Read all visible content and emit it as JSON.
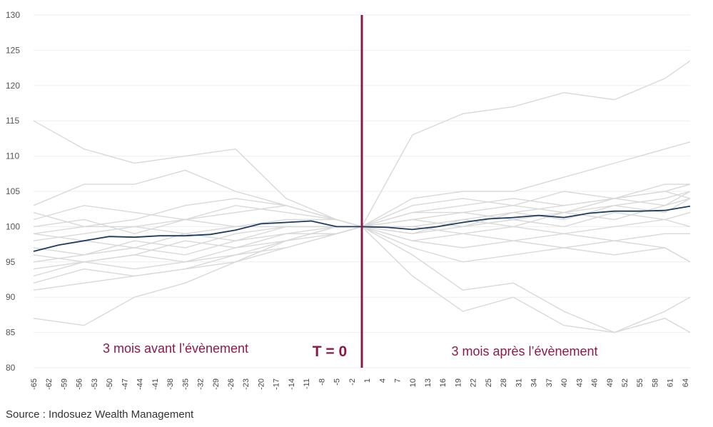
{
  "chart_data": {
    "type": "line",
    "ylim": [
      80,
      130
    ],
    "y_ticks": [
      80,
      85,
      90,
      95,
      100,
      105,
      110,
      115,
      120,
      125,
      130
    ],
    "x_range": [
      -65,
      65
    ],
    "x_tick_labels": [
      "-65",
      "-62",
      "-59",
      "-56",
      "-53",
      "-50",
      "-47",
      "-44",
      "-41",
      "-38",
      "-35",
      "-32",
      "-29",
      "-26",
      "-23",
      "-20",
      "-17",
      "-14",
      "-11",
      "-8",
      "-5",
      "-2",
      "1",
      "4",
      "7",
      "10",
      "13",
      "16",
      "19",
      "22",
      "25",
      "28",
      "31",
      "34",
      "37",
      "40",
      "43",
      "46",
      "49",
      "52",
      "55",
      "58",
      "61",
      "64"
    ],
    "grid": "horizontal",
    "event_marker": {
      "x": 0,
      "label": "T = 0"
    },
    "annotations": {
      "before": "3 mois avant l’évènement",
      "after": "3 mois après l’évènement"
    },
    "average_series": {
      "x": [
        -65,
        -60,
        -55,
        -50,
        -45,
        -40,
        -35,
        -30,
        -25,
        -20,
        -15,
        -10,
        -5,
        0,
        5,
        10,
        15,
        20,
        25,
        30,
        35,
        40,
        45,
        50,
        55,
        60,
        65
      ],
      "values": [
        96.5,
        97.4,
        98.0,
        98.6,
        98.5,
        98.7,
        98.7,
        98.9,
        99.5,
        100.4,
        100.6,
        100.8,
        100.0,
        100.0,
        99.9,
        99.6,
        100.0,
        100.6,
        101.1,
        101.3,
        101.6,
        101.3,
        101.9,
        102.2,
        102.2,
        102.3,
        102.9
      ]
    },
    "background_series": [
      {
        "x": [
          -65,
          -55,
          -45,
          -35,
          -25,
          -15,
          -5,
          0,
          10,
          20,
          30,
          40,
          50,
          60,
          65
        ],
        "values": [
          115,
          111,
          109,
          110,
          111,
          104,
          101,
          100,
          113,
          116,
          117,
          119,
          118,
          121,
          123.5
        ]
      },
      {
        "x": [
          -65,
          -55,
          -45,
          -35,
          -25,
          -15,
          -5,
          0,
          10,
          20,
          30,
          40,
          50,
          60,
          65
        ],
        "values": [
          103,
          106,
          106,
          108,
          105,
          103,
          101,
          100,
          104,
          105,
          105,
          107,
          109,
          111,
          112
        ]
      },
      {
        "x": [
          -65,
          -55,
          -45,
          -35,
          -25,
          -15,
          -5,
          0,
          10,
          20,
          30,
          40,
          50,
          60,
          65
        ],
        "values": [
          87,
          86,
          90,
          92,
          95,
          98,
          100,
          100,
          93,
          88,
          90,
          86,
          85,
          87,
          85
        ]
      },
      {
        "x": [
          -65,
          -55,
          -45,
          -35,
          -25,
          -15,
          -5,
          0,
          10,
          20,
          30,
          40,
          50,
          60,
          65
        ],
        "values": [
          92,
          94,
          93,
          94,
          96,
          97,
          99,
          100,
          96,
          91,
          92,
          88,
          85,
          88,
          90
        ]
      },
      {
        "x": [
          -65,
          -55,
          -45,
          -35,
          -25,
          -15,
          -5,
          0,
          10,
          20,
          30,
          40,
          50,
          60,
          65
        ],
        "values": [
          95,
          96,
          97,
          96,
          98,
          99,
          100,
          100,
          100,
          101,
          100,
          99,
          98,
          97,
          95
        ]
      },
      {
        "x": [
          -65,
          -55,
          -45,
          -35,
          -25,
          -15,
          -5,
          0,
          10,
          20,
          30,
          40,
          50,
          60,
          65
        ],
        "values": [
          98,
          99,
          100,
          99,
          100,
          101,
          101,
          100,
          102,
          103,
          104,
          103,
          104,
          105,
          106
        ]
      },
      {
        "x": [
          -65,
          -55,
          -45,
          -35,
          -25,
          -15,
          -5,
          0,
          10,
          20,
          30,
          40,
          50,
          60,
          65
        ],
        "values": [
          100,
          101,
          99,
          101,
          102,
          103,
          101,
          100,
          101,
          100,
          102,
          101,
          103,
          104,
          105
        ]
      },
      {
        "x": [
          -65,
          -55,
          -45,
          -35,
          -25,
          -15,
          -5,
          0,
          10,
          20,
          30,
          40,
          50,
          60,
          65
        ],
        "values": [
          94,
          95,
          96,
          98,
          97,
          99,
          99,
          100,
          98,
          99,
          100,
          102,
          101,
          103,
          104
        ]
      },
      {
        "x": [
          -65,
          -55,
          -45,
          -35,
          -25,
          -15,
          -5,
          0,
          10,
          20,
          30,
          40,
          50,
          60,
          65
        ],
        "values": [
          97,
          96,
          98,
          97,
          99,
          100,
          100,
          100,
          99,
          101,
          102,
          103,
          104,
          103,
          105
        ]
      },
      {
        "x": [
          -65,
          -55,
          -45,
          -35,
          -25,
          -15,
          -5,
          0,
          10,
          20,
          30,
          40,
          50,
          60,
          65
        ],
        "values": [
          99,
          98,
          97,
          99,
          98,
          100,
          100,
          100,
          103,
          104,
          103,
          105,
          104,
          106,
          106
        ]
      },
      {
        "x": [
          -65,
          -55,
          -45,
          -35,
          -25,
          -15,
          -5,
          0,
          10,
          20,
          30,
          40,
          50,
          60,
          65
        ],
        "values": [
          102,
          100,
          101,
          103,
          104,
          103,
          101,
          100,
          102,
          102,
          101,
          100,
          102,
          101,
          100
        ]
      },
      {
        "x": [
          -65,
          -55,
          -45,
          -35,
          -25,
          -15,
          -5,
          0,
          10,
          20,
          30,
          40,
          50,
          60,
          65
        ],
        "values": [
          93,
          95,
          96,
          95,
          96,
          98,
          99,
          100,
          100,
          99,
          98,
          97,
          96,
          97,
          95
        ]
      },
      {
        "x": [
          -65,
          -55,
          -45,
          -35,
          -25,
          -15,
          -5,
          0,
          10,
          20,
          30,
          40,
          50,
          60,
          65
        ],
        "values": [
          101,
          103,
          102,
          101,
          103,
          102,
          101,
          100,
          99,
          100,
          101,
          102,
          103,
          102,
          104
        ]
      },
      {
        "x": [
          -65,
          -55,
          -45,
          -35,
          -25,
          -15,
          -5,
          0,
          10,
          20,
          30,
          40,
          50,
          60,
          65
        ],
        "values": [
          96,
          95,
          94,
          95,
          97,
          98,
          100,
          100,
          101,
          102,
          103,
          102,
          104,
          105,
          104
        ]
      },
      {
        "x": [
          -65,
          -55,
          -45,
          -35,
          -25,
          -15,
          -5,
          0,
          10,
          20,
          30,
          40,
          50,
          60,
          65
        ],
        "values": [
          99,
          100,
          100,
          101,
          100,
          100,
          100,
          100,
          98,
          97,
          98,
          99,
          100,
          101,
          102
        ]
      },
      {
        "x": [
          -65,
          -55,
          -45,
          -35,
          -25,
          -15,
          -5,
          0,
          10,
          20,
          30,
          40,
          50,
          60,
          65
        ],
        "values": [
          91,
          92,
          93,
          94,
          95,
          97,
          99,
          100,
          97,
          95,
          96,
          97,
          98,
          99,
          99
        ]
      }
    ],
    "colors": {
      "average": "#1e3a5f",
      "background": "#d9d9d9",
      "event": "#8b1a4a",
      "grid": "#eeeeee"
    }
  },
  "source": "Source : Indosuez Wealth Management"
}
